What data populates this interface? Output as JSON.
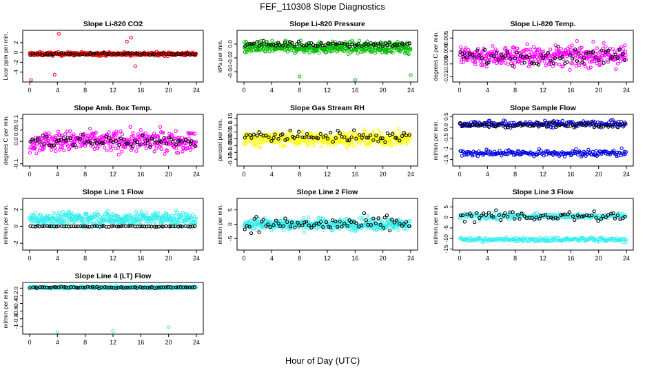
{
  "title": "FEF_110308  Slope Diagnostics",
  "xlabel": "Hour of Day (UTC)",
  "chart_data": [
    {
      "type": "scatter",
      "title": "Slope Li-820 CO2",
      "ylabel": "Licor ppm per min.",
      "color": "#ff0000",
      "xlim": [
        0,
        24
      ],
      "xticks": [
        0,
        4,
        8,
        12,
        16,
        20,
        24
      ],
      "ylim": [
        -6,
        4.5
      ],
      "yticks": [
        -4,
        -2,
        0,
        2
      ],
      "bands": [
        {
          "center": -0.3,
          "spread": 0.35
        }
      ],
      "outliers": [
        [
          4.2,
          3.8
        ],
        [
          14.6,
          3.0
        ],
        [
          15.2,
          -2.8
        ],
        [
          0.2,
          -5.6
        ],
        [
          14.0,
          2.2
        ],
        [
          3.6,
          -4.5
        ]
      ],
      "black_center": -0.3,
      "black_spread": 0.25
    },
    {
      "type": "scatter",
      "title": "Slope Li-820 Pressure",
      "ylabel": "kPa per min.",
      "color": "#00bb00",
      "xlim": [
        0,
        24
      ],
      "xticks": [
        0,
        4,
        8,
        12,
        16,
        20,
        24
      ],
      "ylim": [
        -0.055,
        0.02
      ],
      "yticks": [
        -0.04,
        -0.02,
        0.0
      ],
      "bands": [
        {
          "center": -0.005,
          "spread": 0.008
        }
      ],
      "outliers": [
        [
          8,
          -0.047
        ],
        [
          16,
          -0.052
        ],
        [
          24,
          -0.045
        ]
      ],
      "black_center": 0.0,
      "black_spread": 0.004
    },
    {
      "type": "scatter",
      "title": "Slope Li-820 Temp.",
      "ylabel": "degrees C per min.",
      "color": "#ff00ff",
      "xlim": [
        0,
        24
      ],
      "xticks": [
        0,
        4,
        8,
        12,
        16,
        20,
        24
      ],
      "ylim": [
        -0.012,
        0.008
      ],
      "yticks": [
        -0.01,
        -0.005,
        0.0,
        0.005
      ],
      "bands": [
        {
          "center": -0.002,
          "spread": 0.004
        }
      ],
      "outliers": [],
      "black_center": -0.002,
      "black_spread": 0.003
    },
    {
      "type": "scatter",
      "title": "Slope Amb. Box Temp.",
      "ylabel": "degrees C per min.",
      "color": "#ff00ff",
      "xlim": [
        0,
        24
      ],
      "xticks": [
        0,
        4,
        8,
        12,
        16,
        20,
        24
      ],
      "ylim": [
        -0.11,
        0.12
      ],
      "yticks": [
        -0.1,
        0.0,
        0.05,
        0.1
      ],
      "bands": [
        {
          "center": 0.0,
          "spread": 0.045
        }
      ],
      "outliers": [],
      "black_center": 0.0,
      "black_spread": 0.03
    },
    {
      "type": "scatter",
      "title": "Slope Gas Stream RH",
      "ylabel": "percent per min.",
      "color": "#ffff00",
      "xlim": [
        0,
        24
      ],
      "xticks": [
        0,
        4,
        8,
        12,
        16,
        20,
        24
      ],
      "ylim": [
        -0.2,
        0.18
      ],
      "yticks": [
        -0.15,
        -0.1,
        -0.05,
        0.0,
        0.05,
        0.1,
        0.15
      ],
      "bands": [
        {
          "center": 0.0,
          "spread": 0.05
        }
      ],
      "outliers": [],
      "black_center": 0.02,
      "black_spread": 0.04
    },
    {
      "type": "scatter",
      "title": "Slope Sample Flow",
      "ylabel": "ml/min per min.",
      "color": "#0000dd",
      "xlim": [
        0,
        24
      ],
      "xticks": [
        0,
        4,
        8,
        12,
        16,
        20,
        24
      ],
      "ylim": [
        -1.8,
        0.6
      ],
      "yticks": [
        -1.5,
        -1.0,
        -0.5,
        0.0,
        0.5
      ],
      "bands": [
        {
          "center": 0.15,
          "spread": 0.15
        },
        {
          "center": -1.2,
          "spread": 0.15
        }
      ],
      "outliers": [],
      "black_center": 0.1,
      "black_spread": 0.12
    },
    {
      "type": "scatter",
      "title": "Slope Line 1 Flow",
      "ylabel": "ml/min per min.",
      "color": "#33eeee",
      "xlim": [
        0,
        24
      ],
      "xticks": [
        0,
        4,
        8,
        12,
        16,
        20,
        24
      ],
      "ylim": [
        -2.8,
        3.3
      ],
      "yticks": [
        -2,
        0,
        2
      ],
      "bands": [
        {
          "center": 0.9,
          "spread": 0.8
        }
      ],
      "outliers": [],
      "black_center": 0.0,
      "black_spread": 0.05
    },
    {
      "type": "scatter",
      "title": "Slope Line 2 Flow",
      "ylabel": "ml/min per min.",
      "color": "#33eeee",
      "xlim": [
        0,
        24
      ],
      "xticks": [
        0,
        4,
        8,
        12,
        16,
        20,
        24
      ],
      "ylim": [
        -9,
        9
      ],
      "yticks": [
        -5,
        0,
        5
      ],
      "bands": [
        {
          "center": 0.0,
          "spread": 2.0
        }
      ],
      "outliers": [],
      "black_center": 0.0,
      "black_spread": 2.5
    },
    {
      "type": "scatter",
      "title": "Slope Line 3 Flow",
      "ylabel": "ml/min per min.",
      "color": "#33eeee",
      "xlim": [
        0,
        24
      ],
      "xticks": [
        0,
        4,
        8,
        12,
        16,
        20,
        24
      ],
      "ylim": [
        -15.5,
        9
      ],
      "yticks": [
        -15,
        -10,
        -5,
        0,
        5
      ],
      "bands": [
        {
          "center": 0.5,
          "spread": 1.5
        },
        {
          "center": -10.5,
          "spread": 1.0
        }
      ],
      "outliers": [],
      "black_center": 0.5,
      "black_spread": 2.5
    },
    {
      "type": "scatter",
      "title": "Slope Line 4 (LT) Flow",
      "ylabel": "ml/min per min.",
      "color": "#33eeee",
      "xlim": [
        0,
        24
      ],
      "xticks": [
        0,
        4,
        8,
        12,
        16,
        20,
        24
      ],
      "ylim": [
        -1.2,
        0.15
      ],
      "yticks": [
        -1.0,
        -0.8,
        -0.6,
        -0.4,
        -0.2,
        0.0
      ],
      "bands": [
        {
          "center": 0.02,
          "spread": 0.025
        }
      ],
      "outliers": [
        [
          4,
          -1.15
        ],
        [
          12,
          -1.12
        ],
        [
          20,
          -1.02
        ]
      ],
      "black_center": 0.02,
      "black_spread": 0.02
    }
  ]
}
